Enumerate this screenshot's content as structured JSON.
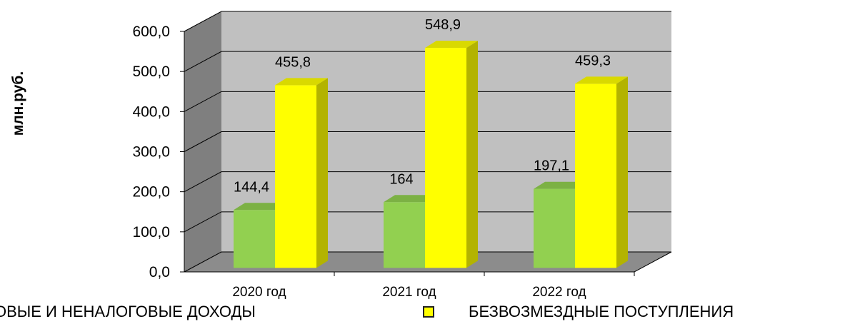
{
  "chart_data": {
    "type": "bar",
    "categories": [
      "2020 год",
      "2021 год",
      "2022 год"
    ],
    "series": [
      {
        "name": "НАЛОГОВЫЕ И НЕНАЛОГОВЫЕ ДОХОДЫ",
        "values": [
          144.4,
          164,
          197.1
        ],
        "labels": [
          "144,4",
          "164",
          "197,1"
        ],
        "color": "#92d050"
      },
      {
        "name": "БЕЗВОЗМЕЗДНЫЕ ПОСТУПЛЕНИЯ",
        "values": [
          455.8,
          548.9,
          459.3
        ],
        "labels": [
          "455,8",
          "548,9",
          "459,3"
        ],
        "color": "#ffff00"
      }
    ],
    "ylabel": "млн.руб.",
    "ylim": [
      0,
      600
    ],
    "yticks": [
      "0,0",
      "100,0",
      "200,0",
      "300,0",
      "400,0",
      "500,0",
      "600,0"
    ],
    "grid": true,
    "legend_position": "bottom"
  },
  "legend": {
    "item1": "ОВЫЕ И НЕНАЛОГОВЫЕ ДОХОДЫ",
    "item2": "БЕЗВОЗМЕЗДНЫЕ ПОСТУПЛЕНИЯ"
  },
  "colors": {
    "wall": "#c0c0c0",
    "side_wall": "#7f7f7f",
    "floor": "#8c8c8c",
    "green": "#92d050",
    "yellow": "#ffff00"
  }
}
